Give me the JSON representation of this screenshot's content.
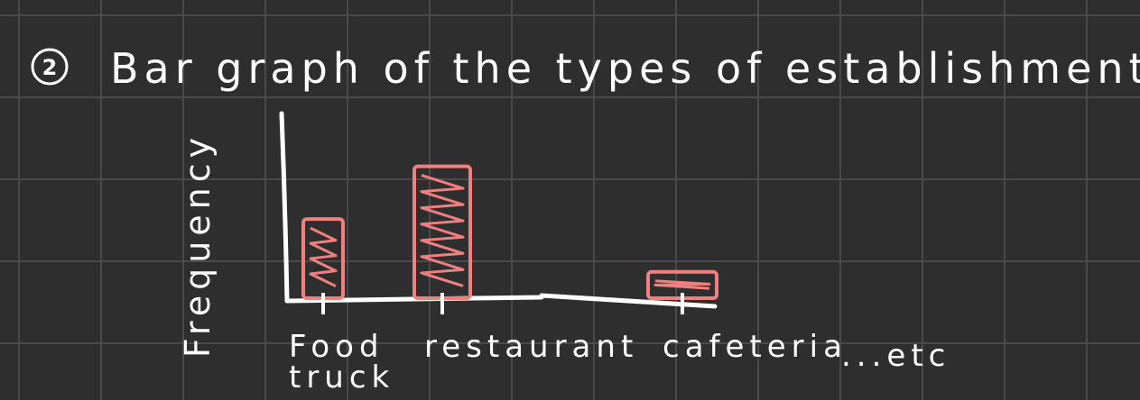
{
  "note_number": "2",
  "chart_data": {
    "type": "bar",
    "title": "Bar graph of the types of establishments",
    "ylabel": "Frequency",
    "xlabel": "",
    "categories": [
      "Food truck",
      "restaurant",
      "cafeteria"
    ],
    "values": [
      3,
      5,
      1
    ],
    "ylim": [
      0,
      7
    ],
    "trailing_text": "...etc",
    "bar_color": "#f08080",
    "axis_color": "#ffffff",
    "grid": true
  }
}
